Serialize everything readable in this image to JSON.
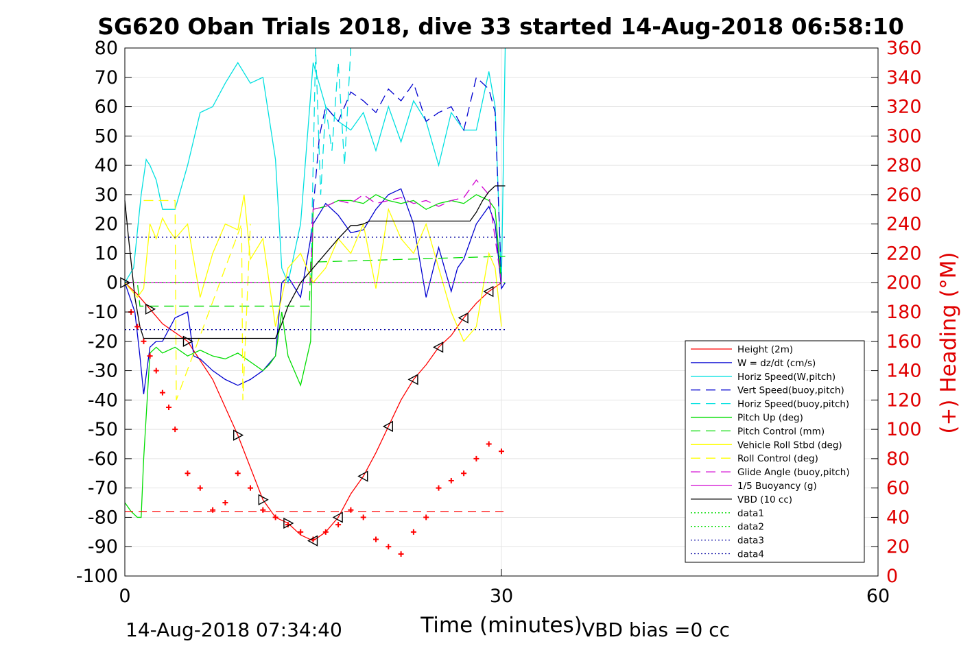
{
  "chart_data": {
    "type": "line",
    "title": "SG620 Oban Trials 2018, dive 33 started 14-Aug-2018 06:58:10",
    "xlabel": "Time (minutes)",
    "ylabel_right": "(+) Heading (°M)",
    "xlim": [
      0,
      60
    ],
    "ylim_left": [
      -100,
      80
    ],
    "ylim_right": [
      0,
      360
    ],
    "x_ticks": [
      "0",
      "30",
      "60"
    ],
    "y_ticks_left": [
      "80",
      "70",
      "60",
      "50",
      "40",
      "30",
      "20",
      "10",
      "0",
      "-10",
      "-20",
      "-30",
      "-40",
      "-50",
      "-60",
      "-70",
      "-80",
      "-90",
      "-100"
    ],
    "y_ticks_right": [
      "360",
      "340",
      "320",
      "300",
      "280",
      "260",
      "240",
      "220",
      "200",
      "180",
      "160",
      "140",
      "120",
      "100",
      "80",
      "60",
      "40",
      "20",
      "0"
    ],
    "grid": true,
    "legend_position": "lower-right",
    "footer_left": "14-Aug-2018 07:34:40",
    "footer_right": "VBD bias =0 cc",
    "colors": {
      "red": "#ff0000",
      "blue": "#0000d0",
      "cyan": "#00e0e0",
      "green": "#00dd00",
      "yellow": "#ffff00",
      "magenta": "#d000d0",
      "black": "#000000",
      "navy": "#0000a0"
    },
    "legend": [
      {
        "label": "Height (2m)",
        "color": "#ff0000",
        "dash": "solid"
      },
      {
        "label": "W = dz/dt (cm/s)",
        "color": "#0000d0",
        "dash": "solid"
      },
      {
        "label": "Horiz Speed(W,pitch)",
        "color": "#00e0e0",
        "dash": "solid"
      },
      {
        "label": "Vert Speed(buoy,pitch)",
        "color": "#0000d0",
        "dash": "dashed"
      },
      {
        "label": "Horiz Speed(buoy,pitch)",
        "color": "#00e0e0",
        "dash": "dashed"
      },
      {
        "label": "Pitch Up (deg)",
        "color": "#00dd00",
        "dash": "solid"
      },
      {
        "label": "Pitch Control (mm)",
        "color": "#00dd00",
        "dash": "dashed"
      },
      {
        "label": "Vehicle Roll Stbd (deg)",
        "color": "#ffff00",
        "dash": "solid"
      },
      {
        "label": "Roll Control (deg)",
        "color": "#ffff00",
        "dash": "dashed"
      },
      {
        "label": "Glide Angle (buoy,pitch)",
        "color": "#d000d0",
        "dash": "dashed"
      },
      {
        "label": "1/5 Buoyancy (g)",
        "color": "#d000d0",
        "dash": "solid"
      },
      {
        "label": "VBD (10 cc)",
        "color": "#000000",
        "dash": "solid"
      },
      {
        "label": "data1",
        "color": "#00dd00",
        "dash": "dotted"
      },
      {
        "label": "data2",
        "color": "#00dd00",
        "dash": "dotted"
      },
      {
        "label": "data3",
        "color": "#0000a0",
        "dash": "dotted"
      },
      {
        "label": "data4",
        "color": "#0000a0",
        "dash": "dotted"
      }
    ],
    "series": [
      {
        "name": "Height (2m)",
        "axis": "left",
        "x": [
          0,
          1,
          2,
          3,
          5,
          7,
          9,
          10,
          11,
          12,
          13,
          14,
          15,
          16,
          17,
          18,
          19,
          20,
          21,
          22,
          23,
          24,
          25,
          26,
          27,
          28,
          29,
          30
        ],
        "y": [
          0,
          -4,
          -9,
          -14,
          -20,
          -33,
          -52,
          -63,
          -74,
          -80,
          -82,
          -86,
          -88,
          -85,
          -80,
          -72,
          -66,
          -58,
          -49,
          -40,
          -33,
          -28,
          -22,
          -18,
          -12,
          -7,
          -3,
          0
        ]
      },
      {
        "name": "W = dz/dt (cm/s)",
        "axis": "left",
        "x": [
          0,
          0.8,
          1.2,
          1.5,
          2,
          2.5,
          3,
          4,
          5,
          5.5,
          6,
          7,
          8,
          9,
          10,
          11,
          12,
          12.5,
          13,
          14,
          15,
          16,
          17,
          18,
          19,
          20,
          21,
          22,
          23,
          24,
          25,
          26,
          26.5,
          27,
          28,
          29,
          29.5,
          30,
          30.3
        ],
        "y": [
          0,
          -10,
          -25,
          -38,
          -22,
          -20,
          -20,
          -12,
          -10,
          -25,
          -26,
          -30,
          -33,
          -35,
          -33,
          -30,
          -25,
          0,
          2,
          -5,
          20,
          27,
          23,
          17,
          18,
          25,
          30,
          32,
          20,
          -5,
          12,
          -3,
          5,
          8,
          20,
          26,
          20,
          -2,
          0
        ]
      },
      {
        "name": "Horiz Speed(W,pitch)",
        "axis": "left",
        "x": [
          0,
          0.7,
          1.3,
          1.7,
          2,
          2.5,
          3,
          4,
          5,
          6,
          7,
          8,
          9,
          10,
          11,
          12,
          12.5,
          13,
          14,
          15,
          16,
          17,
          18,
          19,
          20,
          21,
          22,
          23,
          24,
          25,
          26,
          27,
          28,
          29,
          29.5,
          30,
          30.3
        ],
        "y": [
          0,
          5,
          30,
          42,
          40,
          35,
          25,
          25,
          40,
          58,
          60,
          68,
          75,
          68,
          70,
          42,
          5,
          0,
          20,
          75,
          60,
          55,
          52,
          58,
          45,
          60,
          48,
          62,
          55,
          40,
          58,
          52,
          52,
          72,
          60,
          0,
          80
        ]
      },
      {
        "name": "Vert Speed(buoy,pitch)",
        "axis": "left",
        "x": [
          14.8,
          15.5,
          16,
          17,
          18,
          19,
          20,
          21,
          22,
          23,
          24,
          25,
          26,
          27,
          28,
          29,
          29.5,
          30
        ],
        "y": [
          15,
          50,
          60,
          55,
          65,
          62,
          58,
          66,
          62,
          68,
          55,
          58,
          60,
          52,
          70,
          66,
          58,
          0
        ]
      },
      {
        "name": "Horiz Speed(buoy,pitch)",
        "axis": "left",
        "x": [
          14.8,
          15.2,
          15.6,
          16,
          16.5,
          17,
          17.5,
          18
        ],
        "y": [
          0,
          80,
          30,
          60,
          45,
          75,
          40,
          80
        ]
      },
      {
        "name": "Pitch Up (deg)",
        "axis": "left",
        "x": [
          0,
          0.5,
          1,
          1.3,
          1.5,
          2,
          2.5,
          3,
          4,
          5,
          6,
          7,
          8,
          9,
          10,
          11,
          11.5,
          12,
          12.5,
          13,
          13.5,
          14,
          14.8,
          15,
          16,
          17,
          18,
          19,
          20,
          21,
          22,
          23,
          24,
          25,
          26,
          27,
          28,
          29,
          29.5,
          30
        ],
        "y": [
          -75,
          -78,
          -80,
          -80,
          -60,
          -24,
          -22,
          -24,
          -22,
          -25,
          -23,
          -25,
          -26,
          -24,
          -27,
          -30,
          -28,
          -25,
          -10,
          -25,
          -30,
          -35,
          -20,
          25,
          26,
          28,
          28,
          27,
          30,
          28,
          27,
          28,
          25,
          27,
          28,
          27,
          30,
          28,
          25,
          0
        ]
      },
      {
        "name": "Pitch Control (mm)",
        "axis": "left",
        "x": [
          0,
          1,
          1.2,
          14.7,
          14.8,
          30.3
        ],
        "y": [
          0,
          0,
          -8,
          -8,
          7,
          9
        ]
      },
      {
        "name": "Vehicle Roll Stbd (deg)",
        "axis": "left",
        "x": [
          0,
          1,
          1.5,
          2,
          2.5,
          3,
          3.5,
          4,
          5,
          6,
          7,
          8,
          9,
          9.5,
          10,
          11,
          12,
          13,
          14,
          15,
          16,
          17,
          18,
          19,
          20,
          21,
          22,
          23,
          24,
          25,
          26,
          27,
          28,
          29,
          29.5,
          30
        ],
        "y": [
          0,
          -5,
          -2,
          20,
          15,
          22,
          18,
          15,
          20,
          -5,
          10,
          20,
          18,
          30,
          8,
          15,
          -15,
          5,
          10,
          0,
          5,
          15,
          10,
          20,
          -2,
          25,
          15,
          10,
          20,
          5,
          -10,
          -20,
          -15,
          10,
          5,
          -15
        ]
      },
      {
        "name": "Roll Control (deg)",
        "axis": "left",
        "x": [
          1.5,
          4,
          4.1,
          9.3,
          9.4,
          10
        ],
        "y": [
          28,
          28,
          -40,
          20,
          -40,
          20
        ]
      },
      {
        "name": "Glide Angle (buoy,pitch)",
        "axis": "left",
        "x": [
          0,
          14.8,
          15,
          16,
          17,
          18,
          19,
          20,
          21,
          22,
          23,
          24,
          25,
          26,
          27,
          28,
          29,
          30
        ],
        "y": [
          0,
          0,
          25,
          26,
          28,
          27,
          30,
          27,
          28,
          29,
          27,
          28,
          26,
          28,
          29,
          35,
          30,
          0
        ]
      },
      {
        "name": "1/5 Buoyancy (g)",
        "axis": "left",
        "x": [
          0,
          30
        ],
        "y": [
          0,
          0
        ]
      },
      {
        "name": "VBD (10 cc)",
        "axis": "left",
        "x": [
          0,
          0.3,
          0.8,
          1.2,
          1.5,
          2,
          3,
          4,
          5,
          6,
          7,
          8,
          9,
          10,
          11,
          12,
          12.5,
          13,
          14,
          15,
          16,
          17,
          18,
          18.5,
          19,
          19.5,
          20,
          21,
          22,
          23,
          24,
          25,
          26,
          27,
          27.5,
          28,
          28.5,
          29,
          29.5,
          30,
          30.3
        ],
        "y": [
          28,
          15,
          -5,
          -15,
          -19,
          -19,
          -19,
          -19,
          -19,
          -19,
          -19,
          -19,
          -19,
          -19,
          -19,
          -19,
          -14,
          -8,
          0,
          5,
          10,
          15,
          19.5,
          19.5,
          20,
          21,
          21,
          21,
          21,
          21,
          21,
          21,
          21,
          21,
          21,
          24,
          28,
          31,
          33,
          33,
          33
        ]
      },
      {
        "name": "data1",
        "axis": "left",
        "x": [
          0,
          30.3
        ],
        "y": [
          0,
          0
        ]
      },
      {
        "name": "data2",
        "axis": "left",
        "x": [
          0,
          30.3
        ],
        "y": [
          0,
          0
        ]
      },
      {
        "name": "data3",
        "axis": "left",
        "x": [
          0,
          30.3
        ],
        "y": [
          15.5,
          15.5
        ]
      },
      {
        "name": "data4",
        "axis": "left",
        "x": [
          0,
          30.3
        ],
        "y": [
          -16,
          -16
        ]
      },
      {
        "name": "Red dashed",
        "axis": "left",
        "x": [
          0,
          30.3
        ],
        "y": [
          -78,
          -78
        ]
      },
      {
        "name": "Heading",
        "axis": "right",
        "x": [
          0.5,
          1,
          1.5,
          2,
          2.5,
          3,
          3.5,
          4,
          5,
          6,
          7,
          8,
          9,
          10,
          11,
          12,
          13,
          14,
          15,
          16,
          17,
          18,
          19,
          20,
          21,
          22,
          23,
          24,
          25,
          26,
          27,
          28,
          29,
          30
        ],
        "y": [
          180,
          170,
          160,
          150,
          140,
          125,
          115,
          100,
          70,
          60,
          45,
          50,
          70,
          60,
          45,
          40,
          35,
          30,
          25,
          30,
          35,
          45,
          40,
          25,
          20,
          15,
          30,
          40,
          60,
          65,
          70,
          80,
          90,
          85
        ]
      }
    ]
  }
}
